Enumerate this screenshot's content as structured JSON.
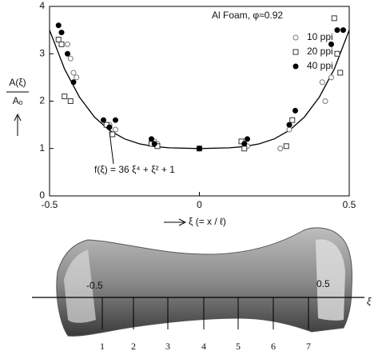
{
  "chart_data": {
    "type": "scatter",
    "annotation_title": "Al Foam,  φ≈0.92",
    "y_label_top": "A(ξ)",
    "y_label_bottom": "Aₒ",
    "x_label": "ξ (= x / ℓ)",
    "fit_label": "f(ξ) = 36 ξ⁴ + ξ² + 1",
    "xlim": [
      -0.5,
      0.5
    ],
    "xticks": [
      -0.5,
      0,
      0.5
    ],
    "ylim": [
      0,
      4
    ],
    "yticks": [
      0,
      1,
      2,
      3,
      4
    ],
    "series": [
      {
        "name": "10 ppi",
        "color": "#777777",
        "marker": "open-circle",
        "x": [
          -0.44,
          -0.43,
          -0.42,
          -0.41,
          -0.3,
          -0.28,
          -0.15,
          -0.14,
          0.15,
          0.16,
          0.27,
          0.3,
          0.41,
          0.42,
          0.44
        ],
        "values": [
          3.2,
          2.9,
          2.6,
          2.5,
          1.5,
          1.4,
          1.15,
          1.1,
          1.1,
          1.05,
          1.0,
          1.4,
          2.4,
          2.0,
          2.5
        ]
      },
      {
        "name": "20 ppi",
        "color": "#333333",
        "marker": "open-square",
        "x": [
          -0.47,
          -0.46,
          -0.45,
          -0.43,
          -0.31,
          -0.29,
          -0.16,
          -0.14,
          0,
          0.14,
          0.15,
          0.29,
          0.31,
          0.45,
          0.46,
          0.47
        ],
        "values": [
          3.3,
          3.2,
          2.1,
          2.0,
          1.5,
          1.3,
          1.1,
          1.05,
          1.0,
          1.15,
          1.0,
          1.05,
          1.6,
          3.75,
          3.0,
          2.6
        ]
      },
      {
        "name": "40 ppi",
        "color": "#000000",
        "marker": "filled-circle",
        "x": [
          -0.47,
          -0.46,
          -0.44,
          -0.42,
          -0.32,
          -0.3,
          -0.28,
          -0.16,
          -0.15,
          0,
          0.15,
          0.16,
          0.3,
          0.32,
          0.44,
          0.46,
          0.48
        ],
        "values": [
          3.6,
          3.45,
          3.0,
          2.4,
          1.6,
          1.45,
          1.6,
          1.2,
          1.1,
          1.0,
          1.1,
          1.2,
          1.5,
          1.8,
          3.2,
          3.5,
          3.5
        ]
      }
    ],
    "curve": {
      "color": "#000000",
      "x": [
        -0.5,
        -0.45,
        -0.4,
        -0.35,
        -0.3,
        -0.25,
        -0.2,
        -0.15,
        -0.1,
        0,
        0.1,
        0.15,
        0.2,
        0.25,
        0.3,
        0.35,
        0.4,
        0.45,
        0.5
      ],
      "values": [
        3.5,
        2.678,
        2.082,
        1.663,
        1.382,
        1.203,
        1.098,
        1.041,
        1.014,
        1.0,
        1.014,
        1.041,
        1.098,
        1.203,
        1.382,
        1.663,
        2.082,
        2.678,
        3.5
      ]
    }
  },
  "specimen": {
    "tick_left": "-0.5",
    "tick_right": "0.5",
    "axis_label": "ξ",
    "sections": [
      "1",
      "2",
      "3",
      "4",
      "5",
      "6",
      "7"
    ]
  }
}
